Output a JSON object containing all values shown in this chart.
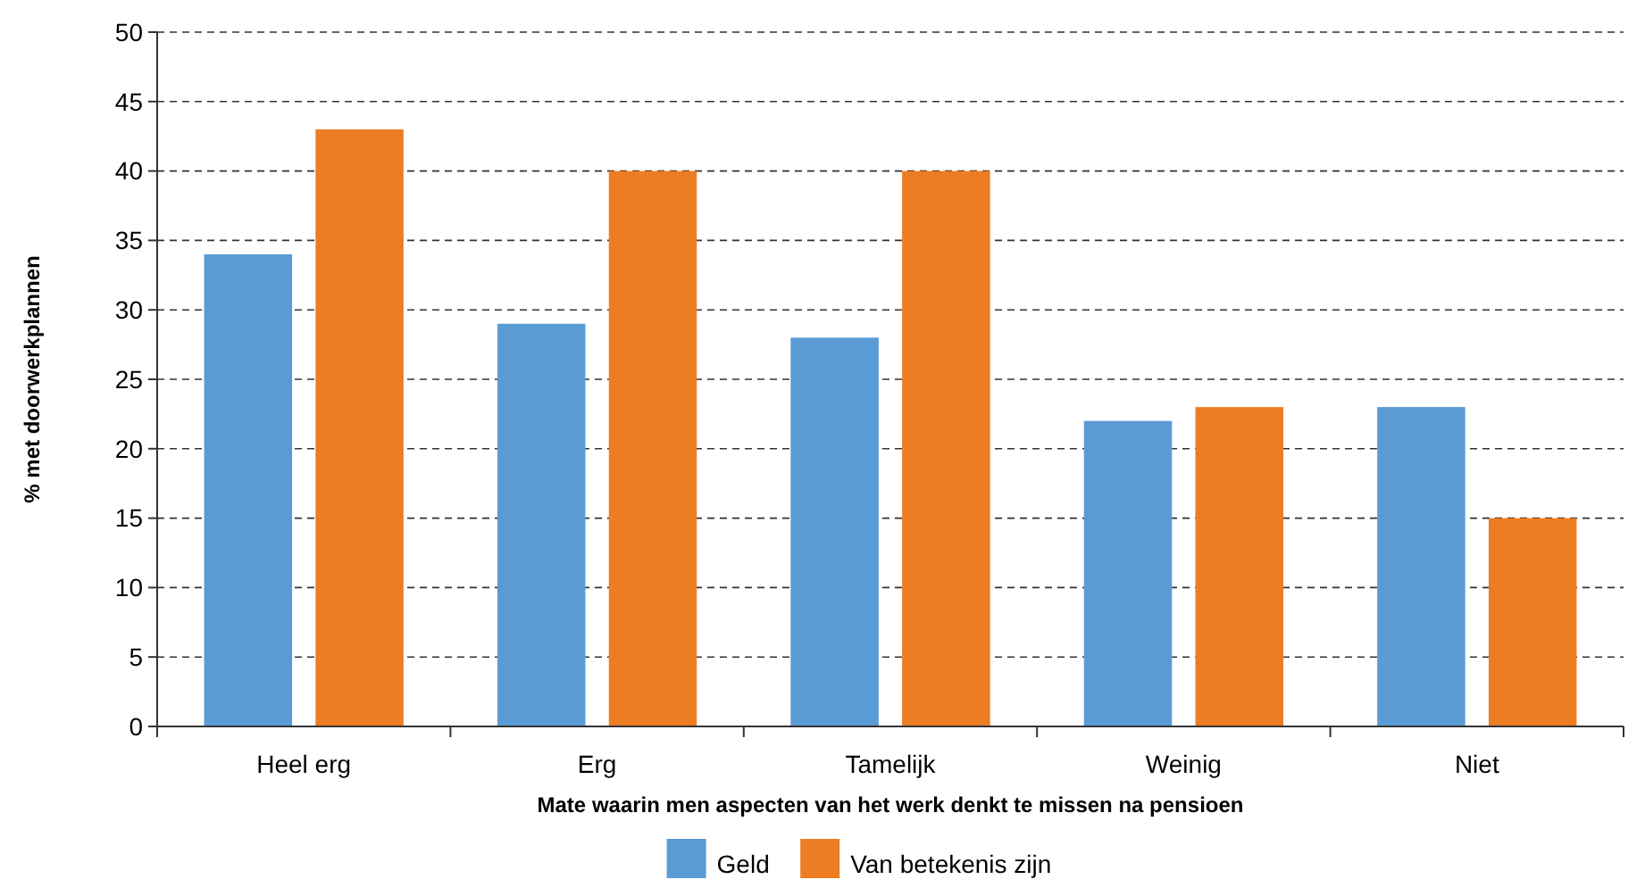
{
  "chart_data": {
    "type": "bar",
    "xlabel": "Mate waarin men aspecten van het werk denkt te missen na pensioen",
    "ylabel": "% met doorwerkplannen",
    "categories": [
      "Heel erg",
      "Erg",
      "Tamelijk",
      "Weinig",
      "Niet"
    ],
    "series": [
      {
        "name": "Geld",
        "color": "#5b9bd5",
        "values": [
          34,
          29,
          28,
          22,
          23
        ]
      },
      {
        "name": "Van betekenis zijn",
        "color": "#ed7d22",
        "values": [
          43,
          40,
          40,
          23,
          15
        ]
      }
    ],
    "ylim": [
      0,
      50
    ],
    "yticks": [
      0,
      5,
      10,
      15,
      20,
      25,
      30,
      35,
      40,
      45,
      50
    ],
    "grid": "y",
    "legend": "bottom"
  }
}
